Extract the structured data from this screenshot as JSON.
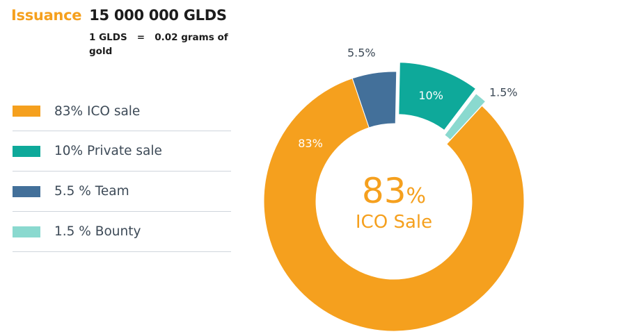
{
  "header": {
    "issuance_label": "Issuance",
    "issuance_value": "15 000 000 GLDS",
    "rate_line1": "1 GLDS   =   0.02 grams of",
    "rate_line2": "gold"
  },
  "colors": {
    "ico": "#f5a01e",
    "private": "#0ea99a",
    "team": "#43709a",
    "bounty": "#8ad9cf"
  },
  "legend": [
    {
      "label": "83% ICO sale",
      "color": "#f5a01e"
    },
    {
      "label": "10% Private sale",
      "color": "#0ea99a"
    },
    {
      "label": "5.5 % Team",
      "color": "#43709a"
    },
    {
      "label": "1.5 % Bounty",
      "color": "#8ad9cf"
    }
  ],
  "chart_data": {
    "type": "pie",
    "donut": true,
    "categories": [
      "ICO sale",
      "Private sale",
      "Team",
      "Bounty"
    ],
    "values": [
      83,
      10,
      5.5,
      1.5
    ],
    "slice_labels": [
      "83%",
      "10%",
      "5.5%",
      "1.5%"
    ],
    "colors": [
      "#f5a01e",
      "#0ea99a",
      "#43709a",
      "#8ad9cf"
    ],
    "center_value": "83",
    "center_unit": "%",
    "center_caption": "ICO Sale"
  }
}
